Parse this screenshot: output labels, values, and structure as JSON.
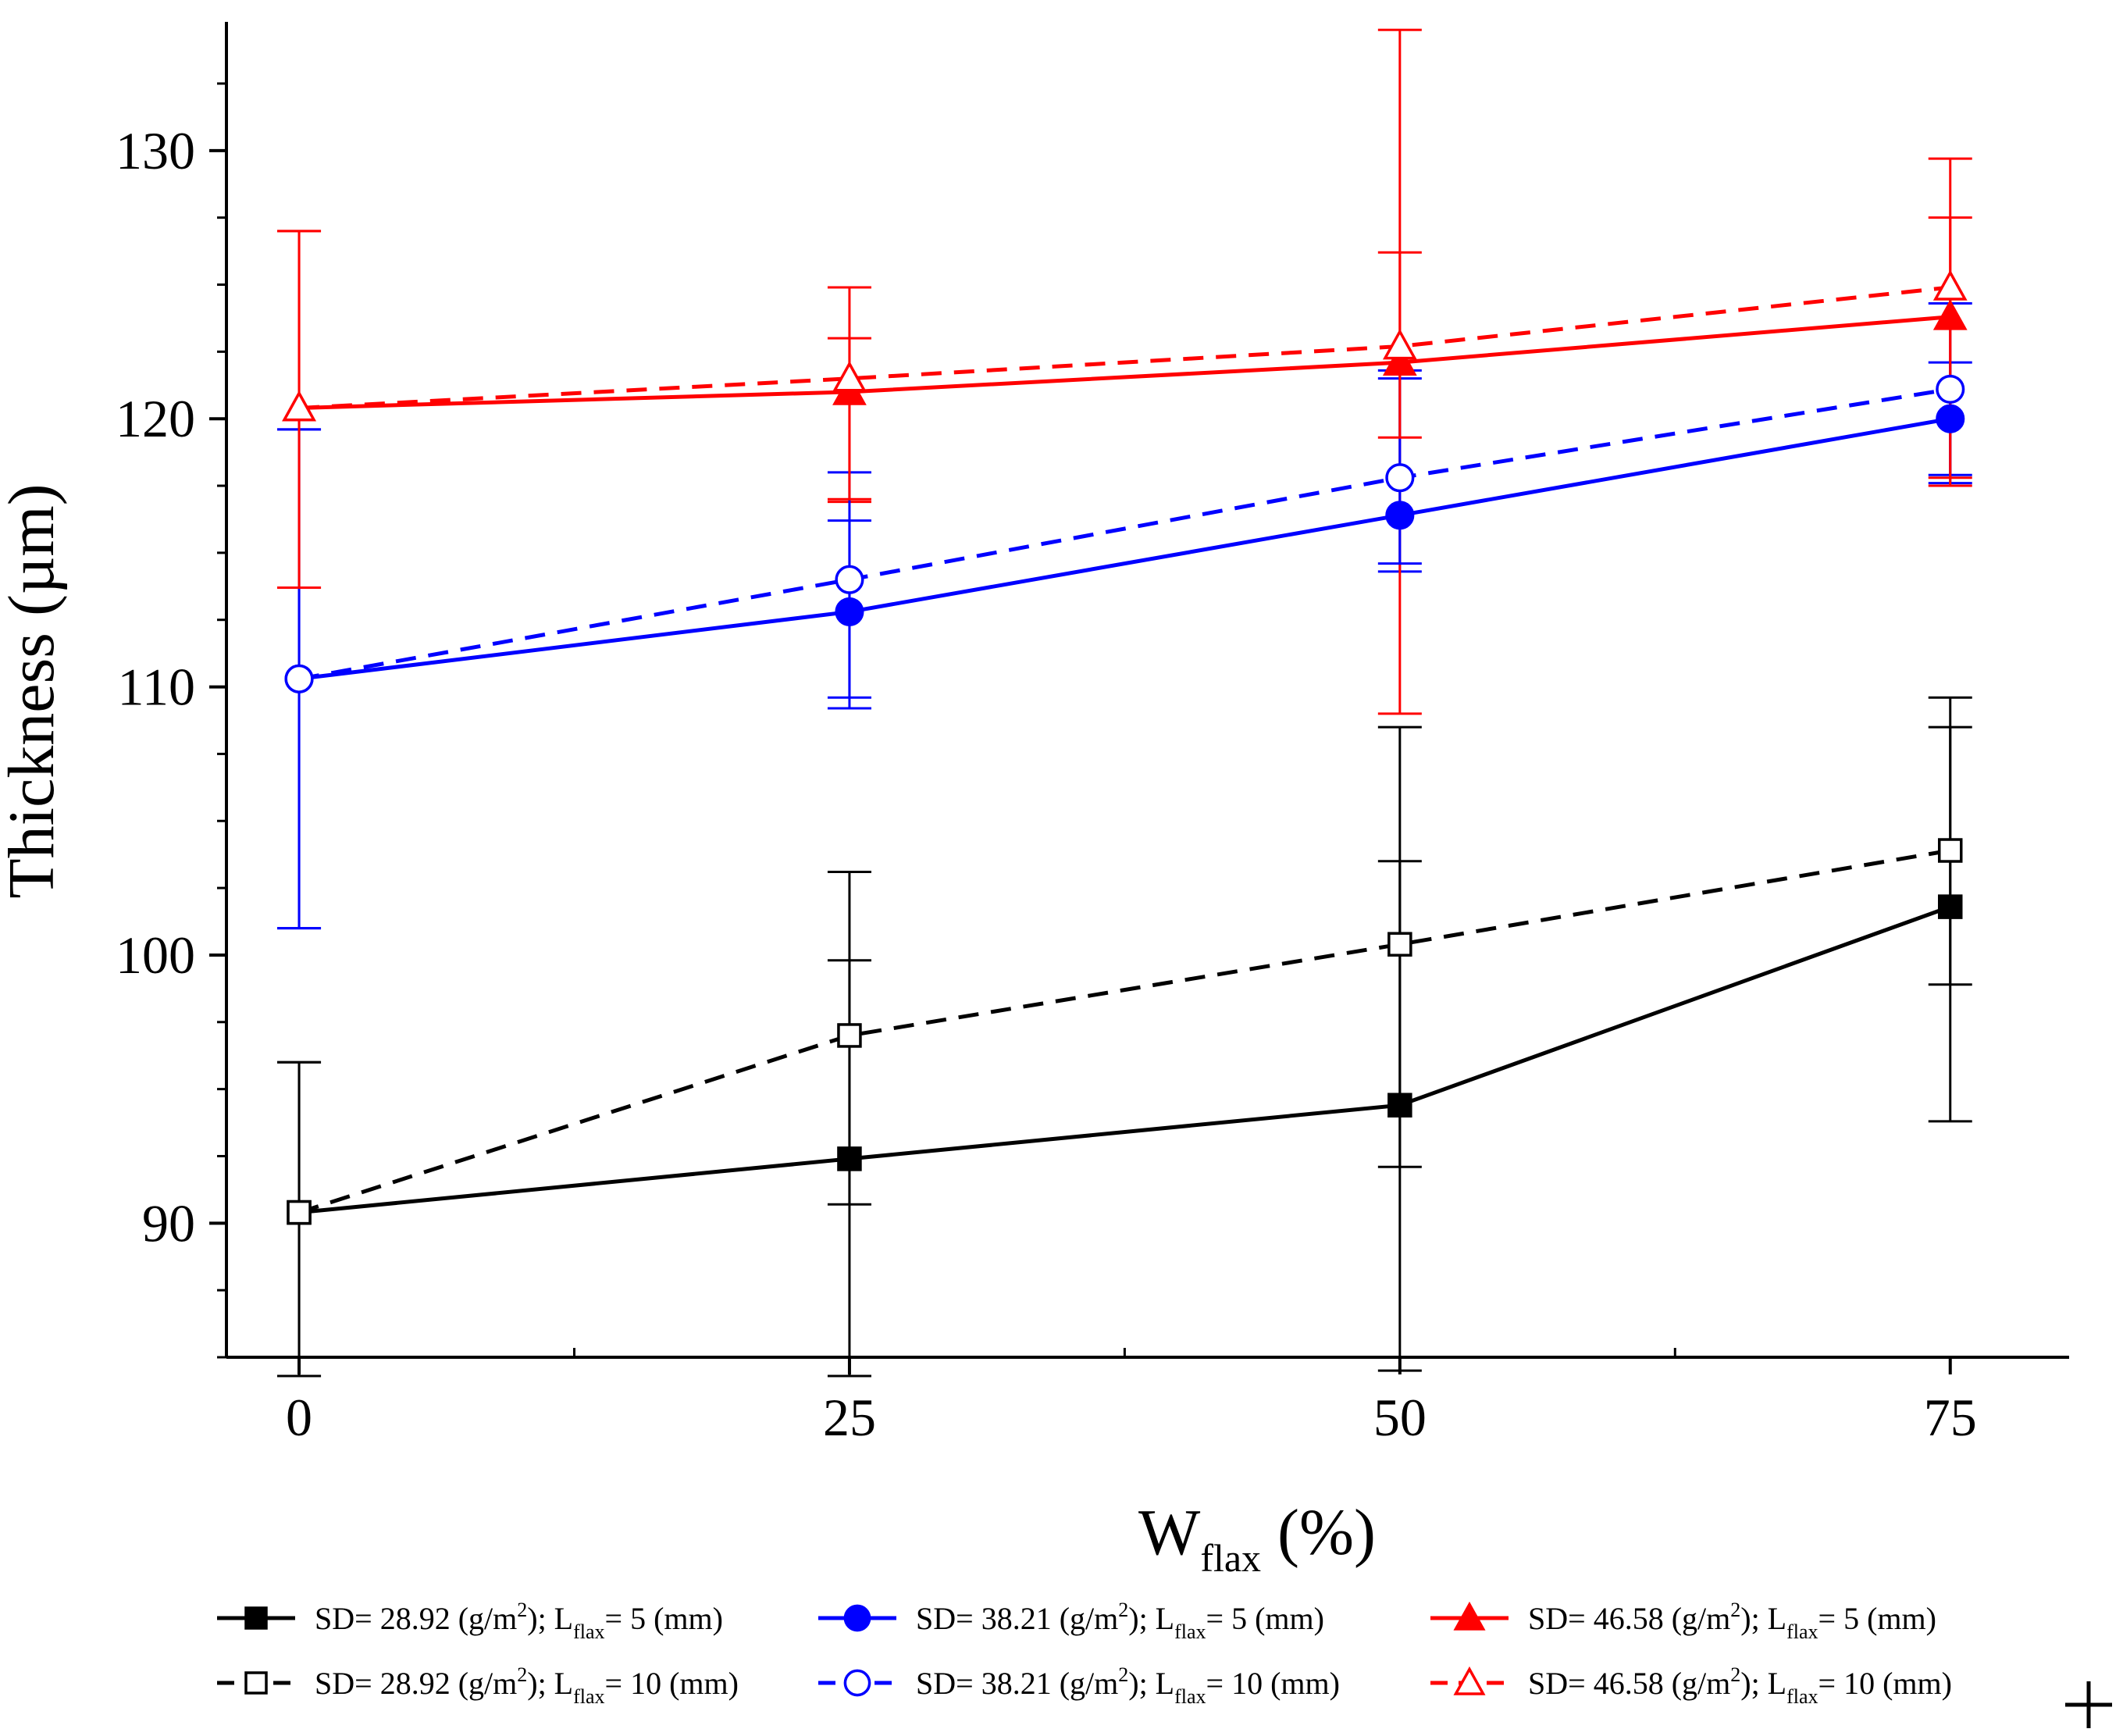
{
  "chart_data": {
    "type": "line",
    "title": "",
    "xlabel": {
      "main": "W",
      "sub": "flax",
      "rest": " (%)"
    },
    "ylabel": "Thickness (µm)",
    "xlim": [
      -3.3,
      80.4
    ],
    "ylim": [
      85.0,
      134.8
    ],
    "xticks": [
      0,
      25,
      50,
      75
    ],
    "xtick_labels": [
      "0",
      "25",
      "50",
      "75"
    ],
    "yticks": [
      90,
      100,
      110,
      120,
      130
    ],
    "ytick_labels": [
      "90",
      "100",
      "110",
      "120",
      "130"
    ],
    "x": [
      0,
      25,
      50,
      75
    ],
    "grid": false,
    "legend_position": "bottom",
    "series": [
      {
        "name": "SD= 28.92 (g/m2); Lflax= 5 (mm)",
        "legend": {
          "sd": "SD= 28.92 (g/m",
          "sup": "2",
          "mid": "); L",
          "sub": "flax",
          "tail": "= 5 (mm)"
        },
        "color": "#000000",
        "dash": "solid",
        "marker": "square",
        "filled": true,
        "values": [
          90.4,
          92.4,
          94.4,
          101.8
        ],
        "err_low": [
          84.3,
          84.3,
          84.5,
          93.8
        ],
        "err_high": [
          96.0,
          103.1,
          108.5,
          109.6
        ]
      },
      {
        "name": "SD= 38.21 (g/m2); Lflax= 5 (mm)",
        "legend": {
          "sd": "SD= 38.21 (g/m",
          "sup": "2",
          "mid": "); L",
          "sub": "flax",
          "tail": "= 5 (mm)"
        },
        "color": "#0000ff",
        "dash": "solid",
        "marker": "circle",
        "filled": true,
        "values": [
          110.3,
          112.8,
          116.4,
          120.0
        ],
        "err_low": [
          101.0,
          109.2,
          114.3,
          117.6
        ],
        "err_high": [
          119.6,
          116.2,
          121.8,
          124.3
        ]
      },
      {
        "name": "SD= 46.58 (g/m2); Lflax= 5 (mm)",
        "legend": {
          "sd": "SD= 46.58 (g/m",
          "sup": "2",
          "mid": "); L",
          "sub": "flax",
          "tail": "= 5 (mm)"
        },
        "color": "#ff0000",
        "dash": "solid",
        "marker": "triangle",
        "filled": true,
        "values": [
          120.4,
          121.0,
          122.1,
          123.8
        ],
        "err_low": [
          113.7,
          116.9,
          109.0,
          117.5
        ],
        "err_high": [
          127.0,
          123.0,
          126.2,
          127.5
        ]
      },
      {
        "name": "SD= 28.92 (g/m2); Lflax= 10 (mm)",
        "legend": {
          "sd": "SD= 28.92 (g/m",
          "sup": "2",
          "mid": "); L",
          "sub": "flax",
          "tail": "= 10 (mm)"
        },
        "color": "#000000",
        "dash": "dashed",
        "marker": "square",
        "filled": false,
        "values": [
          90.4,
          97.0,
          100.4,
          103.9
        ],
        "err_low": [
          84.3,
          90.7,
          92.1,
          98.9
        ],
        "err_high": [
          96.0,
          99.8,
          103.5,
          108.5
        ]
      },
      {
        "name": "SD= 38.21 (g/m2); Lflax= 10 (mm)",
        "legend": {
          "sd": "SD= 38.21 (g/m",
          "sup": "2",
          "mid": "); L",
          "sub": "flax",
          "tail": "= 10 (mm)"
        },
        "color": "#0000ff",
        "dash": "dashed",
        "marker": "circle",
        "filled": false,
        "values": [
          110.3,
          114.0,
          117.8,
          121.1
        ],
        "err_low": [
          101.0,
          109.6,
          114.6,
          117.9
        ],
        "err_high": [
          119.6,
          118.0,
          121.5,
          122.1
        ]
      },
      {
        "name": "SD= 46.58 (g/m2); Lflax= 10 (mm)",
        "legend": {
          "sd": "SD= 46.58 (g/m",
          "sup": "2",
          "mid": "); L",
          "sub": "flax",
          "tail": "= 10 (mm)"
        },
        "color": "#ff0000",
        "dash": "dashed",
        "marker": "triangle",
        "filled": false,
        "values": [
          120.4,
          121.5,
          122.7,
          124.9
        ],
        "err_low": [
          113.7,
          117.0,
          119.3,
          117.8
        ],
        "err_high": [
          127.0,
          124.9,
          134.5,
          129.7
        ]
      }
    ]
  }
}
